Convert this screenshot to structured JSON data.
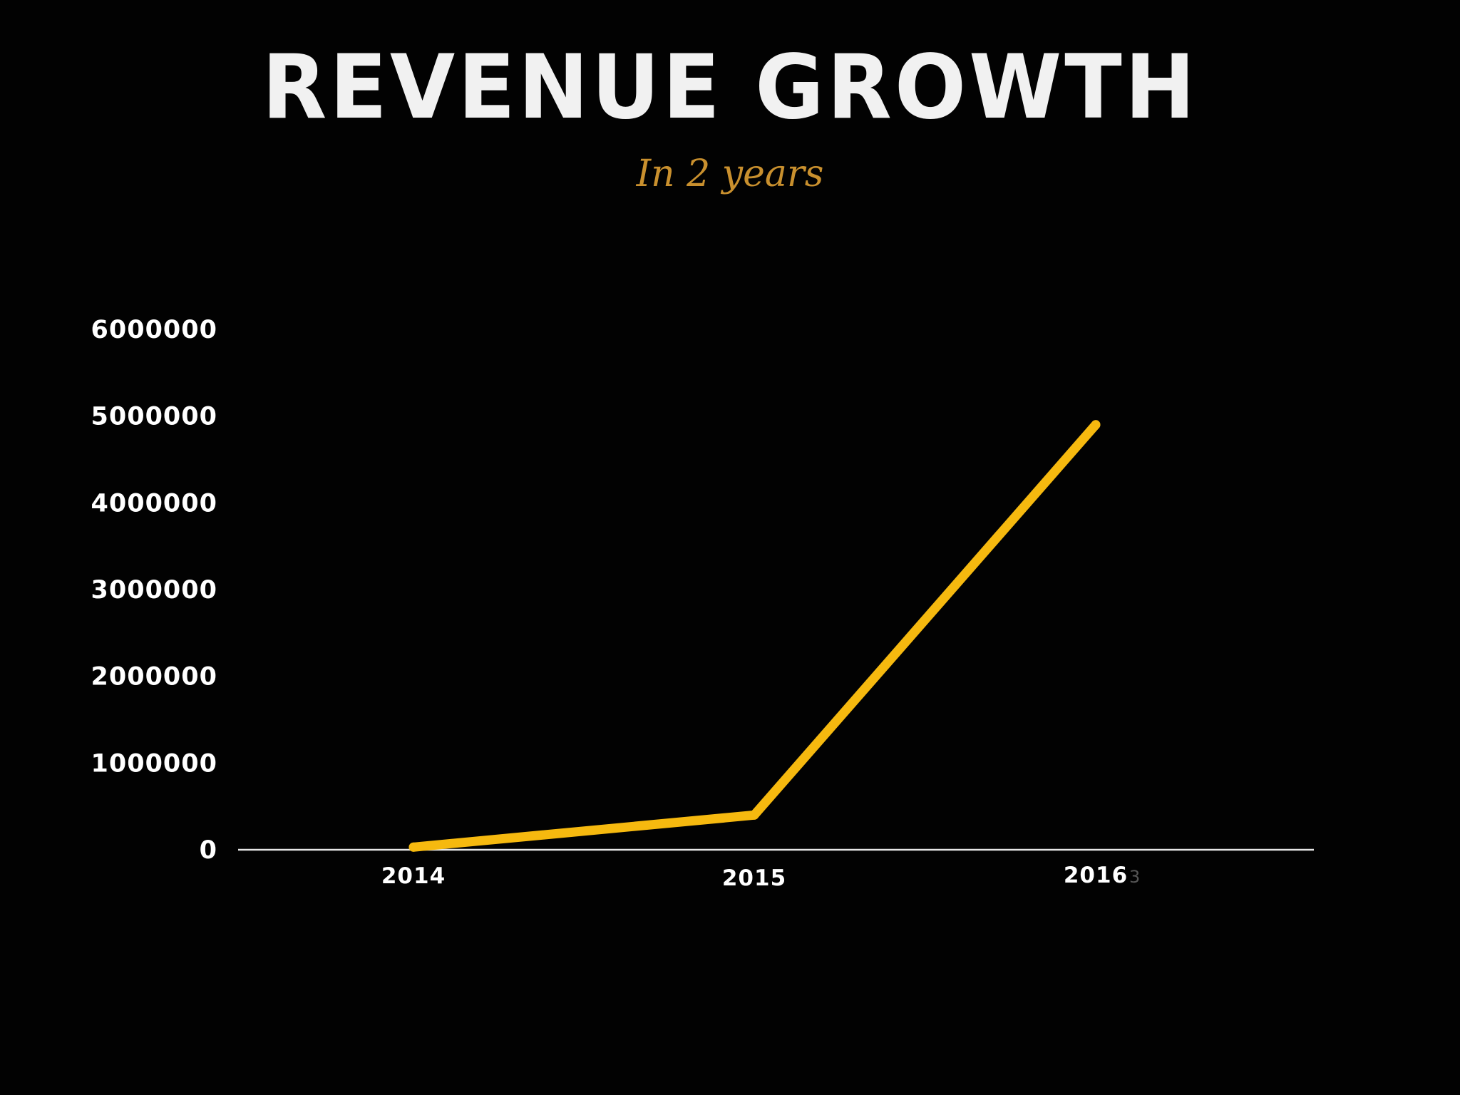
{
  "slide": {
    "title": "REVENUE GROWTH",
    "subtitle": "In 2 years",
    "page_number": "3"
  },
  "colors": {
    "background": "#020202",
    "title": "#f1f1f1",
    "subtitle": "#c9902e",
    "line": "#f6b90f",
    "axis": "#e6e6e6",
    "page_number": "#555555"
  },
  "chart_data": {
    "type": "line",
    "title": "REVENUE GROWTH",
    "subtitle": "In 2 years",
    "xlabel": "",
    "ylabel": "",
    "categories": [
      "2014",
      "2015",
      "2016"
    ],
    "series": [
      {
        "values": [
          30000,
          400000,
          4900000
        ]
      }
    ],
    "yticks": [
      0,
      1000000,
      2000000,
      3000000,
      4000000,
      5000000,
      6000000
    ],
    "ytick_labels": [
      "0",
      "1000000",
      "2000000",
      "3000000",
      "4000000",
      "5000000",
      "6000000"
    ],
    "ylim": [
      0,
      6000000
    ],
    "grid": false,
    "legend": "none"
  }
}
